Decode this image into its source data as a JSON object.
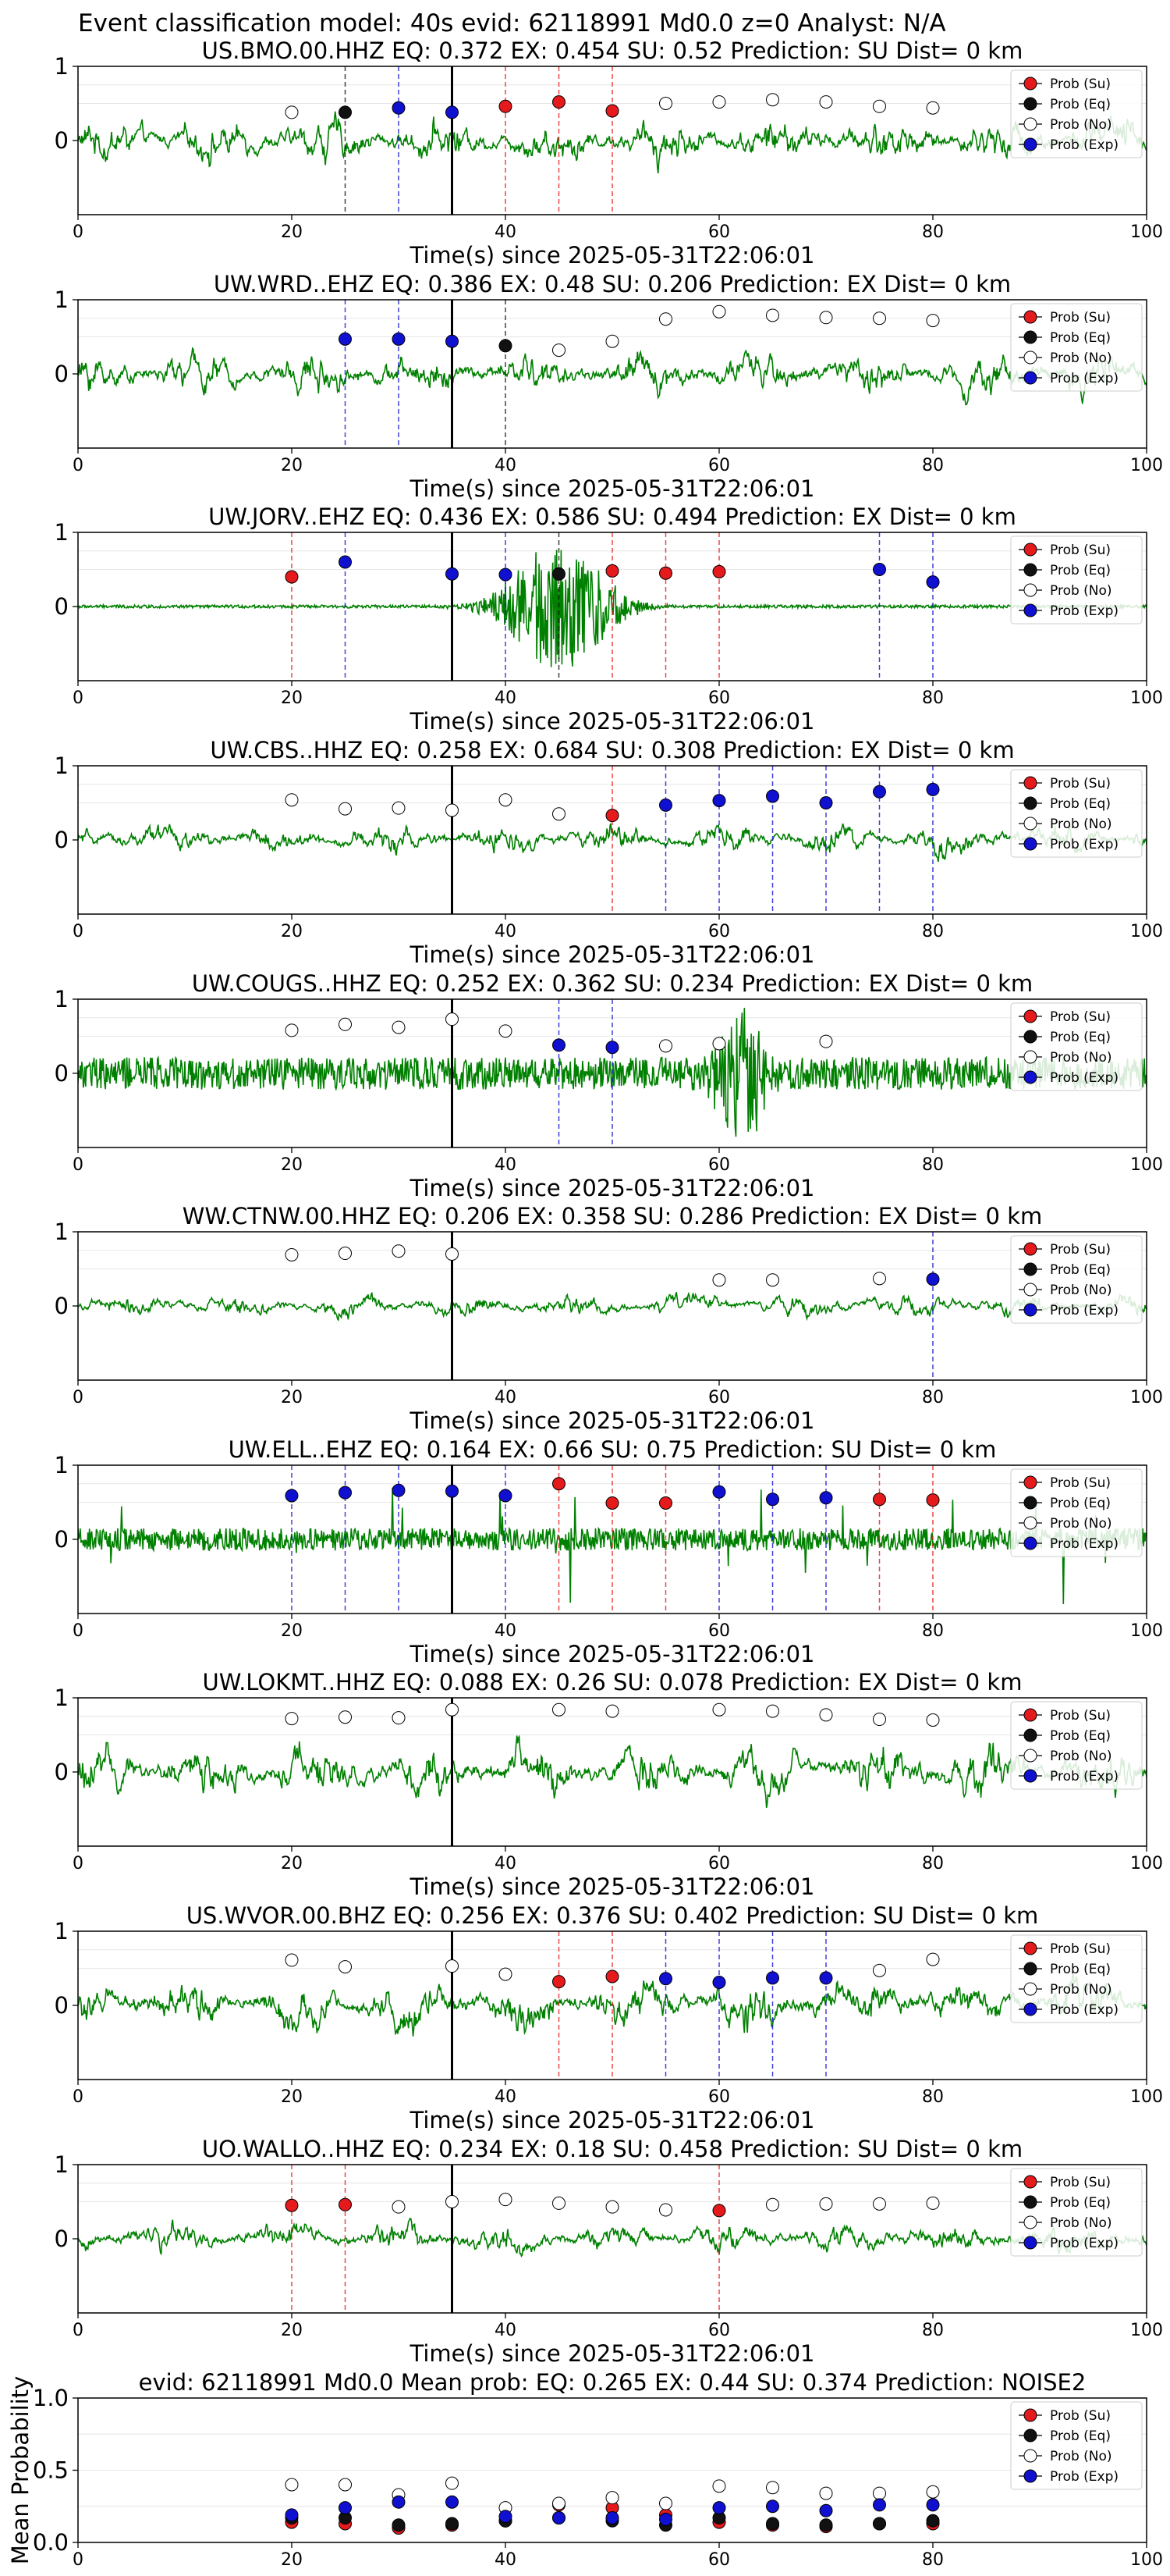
{
  "figure": {
    "suptitle": "Event classification model: 40s evid: 62118991 Md0.0 z=0 Analyst: N/A"
  },
  "legend": {
    "su": "Prob (Su)",
    "eq": "Prob (Eq)",
    "no": "Prob (No)",
    "exp": "Prob (Exp)"
  },
  "colors": {
    "su": "#e41a1c",
    "eq": "#111111",
    "no": "#ffffff",
    "exp": "#1010d0",
    "waveform": "#008000",
    "pick": "#000000"
  },
  "chart_data": [
    {
      "type": "line",
      "title": "US.BMO.00.HHZ   EQ: 0.372  EX: 0.454  SU: 0.52   Prediction: SU    Dist= 0 km",
      "xlabel": "Time(s) since 2025-05-31T22:06:01",
      "xlim": [
        0,
        100
      ],
      "ylim": [
        -1,
        1
      ],
      "xticks": [
        0,
        20,
        40,
        60,
        80,
        100
      ],
      "yticks": [
        0,
        1
      ],
      "legend_position": "top-right",
      "pick_time": 35,
      "probabilities": {
        "su": [
          {
            "x": 40,
            "y": 0.46
          },
          {
            "x": 45,
            "y": 0.52
          },
          {
            "x": 50,
            "y": 0.4
          }
        ],
        "eq": [
          {
            "x": 25,
            "y": 0.38
          }
        ],
        "no": [
          {
            "x": 20,
            "y": 0.38
          },
          {
            "x": 55,
            "y": 0.5
          },
          {
            "x": 60,
            "y": 0.52
          },
          {
            "x": 65,
            "y": 0.55
          },
          {
            "x": 70,
            "y": 0.52
          },
          {
            "x": 75,
            "y": 0.46
          },
          {
            "x": 80,
            "y": 0.44
          }
        ],
        "exp": [
          {
            "x": 30,
            "y": 0.44
          },
          {
            "x": 35,
            "y": 0.38
          }
        ]
      },
      "waveform": {
        "style": "broadband",
        "amplitude": 0.45
      }
    },
    {
      "type": "line",
      "title": "UW.WRD..EHZ   EQ: 0.386  EX: 0.48  SU: 0.206   Prediction: EX    Dist= 0 km",
      "xlabel": "Time(s) since 2025-05-31T22:06:01",
      "xlim": [
        0,
        100
      ],
      "ylim": [
        -1,
        1
      ],
      "xticks": [
        0,
        20,
        40,
        60,
        80,
        100
      ],
      "yticks": [
        0,
        1
      ],
      "legend_position": "top-right",
      "pick_time": 35,
      "probabilities": {
        "su": [],
        "eq": [
          {
            "x": 40,
            "y": 0.38
          }
        ],
        "no": [
          {
            "x": 45,
            "y": 0.32
          },
          {
            "x": 50,
            "y": 0.44
          },
          {
            "x": 55,
            "y": 0.74
          },
          {
            "x": 60,
            "y": 0.84
          },
          {
            "x": 65,
            "y": 0.79
          },
          {
            "x": 70,
            "y": 0.76
          },
          {
            "x": 75,
            "y": 0.75
          },
          {
            "x": 80,
            "y": 0.72
          }
        ],
        "exp": [
          {
            "x": 25,
            "y": 0.47
          },
          {
            "x": 30,
            "y": 0.47
          },
          {
            "x": 35,
            "y": 0.44
          }
        ]
      },
      "waveform": {
        "style": "broadband",
        "amplitude": 0.42
      }
    },
    {
      "type": "line",
      "title": "UW.JORV..EHZ   EQ: 0.436  EX: 0.586  SU: 0.494   Prediction: EX    Dist= 0 km",
      "xlabel": "Time(s) since 2025-05-31T22:06:01",
      "xlim": [
        0,
        100
      ],
      "ylim": [
        -1,
        1
      ],
      "xticks": [
        0,
        20,
        40,
        60,
        80,
        100
      ],
      "yticks": [
        0,
        1
      ],
      "legend_position": "top-right",
      "pick_time": 35,
      "probabilities": {
        "su": [
          {
            "x": 20,
            "y": 0.4
          },
          {
            "x": 50,
            "y": 0.48
          },
          {
            "x": 55,
            "y": 0.45
          },
          {
            "x": 60,
            "y": 0.47
          }
        ],
        "eq": [
          {
            "x": 45,
            "y": 0.44
          }
        ],
        "no": [],
        "exp": [
          {
            "x": 25,
            "y": 0.6
          },
          {
            "x": 35,
            "y": 0.44
          },
          {
            "x": 40,
            "y": 0.43
          },
          {
            "x": 75,
            "y": 0.5
          },
          {
            "x": 80,
            "y": 0.33
          }
        ]
      },
      "waveform": {
        "style": "burst",
        "amplitude": 0.02,
        "burst_center": 45,
        "burst_width": 5,
        "burst_amplitude": 0.9
      }
    },
    {
      "type": "line",
      "title": "UW.CBS..HHZ   EQ: 0.258  EX: 0.684  SU: 0.308   Prediction: EX    Dist= 0 km",
      "xlabel": "Time(s) since 2025-05-31T22:06:01",
      "xlim": [
        0,
        100
      ],
      "ylim": [
        -1,
        1
      ],
      "xticks": [
        0,
        20,
        40,
        60,
        80,
        100
      ],
      "yticks": [
        0,
        1
      ],
      "legend_position": "top-right",
      "pick_time": 35,
      "probabilities": {
        "su": [
          {
            "x": 50,
            "y": 0.33
          }
        ],
        "eq": [],
        "no": [
          {
            "x": 20,
            "y": 0.54
          },
          {
            "x": 25,
            "y": 0.42
          },
          {
            "x": 30,
            "y": 0.43
          },
          {
            "x": 35,
            "y": 0.4
          },
          {
            "x": 40,
            "y": 0.54
          },
          {
            "x": 45,
            "y": 0.35
          }
        ],
        "exp": [
          {
            "x": 55,
            "y": 0.47
          },
          {
            "x": 60,
            "y": 0.53
          },
          {
            "x": 65,
            "y": 0.59
          },
          {
            "x": 70,
            "y": 0.5
          },
          {
            "x": 75,
            "y": 0.65
          },
          {
            "x": 80,
            "y": 0.68
          }
        ]
      },
      "waveform": {
        "style": "broadband",
        "amplitude": 0.3
      }
    },
    {
      "type": "line",
      "title": "UW.COUGS..HHZ   EQ: 0.252  EX: 0.362  SU: 0.234   Prediction: EX    Dist= 0 km",
      "xlabel": "Time(s) since 2025-05-31T22:06:01",
      "xlim": [
        0,
        100
      ],
      "ylim": [
        -1,
        1
      ],
      "xticks": [
        0,
        20,
        40,
        60,
        80,
        100
      ],
      "yticks": [
        0,
        1
      ],
      "legend_position": "top-right",
      "pick_time": 35,
      "probabilities": {
        "su": [],
        "eq": [],
        "no": [
          {
            "x": 20,
            "y": 0.58
          },
          {
            "x": 25,
            "y": 0.66
          },
          {
            "x": 30,
            "y": 0.62
          },
          {
            "x": 35,
            "y": 0.73
          },
          {
            "x": 40,
            "y": 0.57
          },
          {
            "x": 55,
            "y": 0.37
          },
          {
            "x": 60,
            "y": 0.4
          },
          {
            "x": 70,
            "y": 0.43
          }
        ],
        "exp": [
          {
            "x": 45,
            "y": 0.38
          },
          {
            "x": 50,
            "y": 0.35
          }
        ]
      },
      "waveform": {
        "style": "burst",
        "amplitude": 0.22,
        "burst_center": 62,
        "burst_width": 2.5,
        "burst_amplitude": 0.9
      }
    },
    {
      "type": "line",
      "title": "WW.CTNW.00.HHZ   EQ: 0.206  EX: 0.358  SU: 0.286   Prediction: EX    Dist= 0 km",
      "xlabel": "Time(s) since 2025-05-31T22:06:01",
      "xlim": [
        0,
        100
      ],
      "ylim": [
        -1,
        1
      ],
      "xticks": [
        0,
        20,
        40,
        60,
        80,
        100
      ],
      "yticks": [
        0,
        1
      ],
      "legend_position": "top-right",
      "pick_time": 35,
      "probabilities": {
        "su": [],
        "eq": [],
        "no": [
          {
            "x": 20,
            "y": 0.69
          },
          {
            "x": 25,
            "y": 0.71
          },
          {
            "x": 30,
            "y": 0.74
          },
          {
            "x": 35,
            "y": 0.7
          },
          {
            "x": 60,
            "y": 0.35
          },
          {
            "x": 65,
            "y": 0.35
          },
          {
            "x": 75,
            "y": 0.37
          }
        ],
        "exp": [
          {
            "x": 80,
            "y": 0.36
          }
        ]
      },
      "waveform": {
        "style": "broadband",
        "amplitude": 0.22
      }
    },
    {
      "type": "line",
      "title": "UW.ELL..EHZ   EQ: 0.164  EX: 0.66  SU: 0.75   Prediction: SU    Dist= 0 km",
      "xlabel": "Time(s) since 2025-05-31T22:06:01",
      "xlim": [
        0,
        100
      ],
      "ylim": [
        -1,
        1
      ],
      "xticks": [
        0,
        20,
        40,
        60,
        80,
        100
      ],
      "yticks": [
        0,
        1
      ],
      "legend_position": "top-right",
      "pick_time": 35,
      "probabilities": {
        "su": [
          {
            "x": 45,
            "y": 0.75
          },
          {
            "x": 50,
            "y": 0.49
          },
          {
            "x": 55,
            "y": 0.49
          },
          {
            "x": 75,
            "y": 0.54
          },
          {
            "x": 80,
            "y": 0.53
          }
        ],
        "eq": [],
        "no": [],
        "exp": [
          {
            "x": 20,
            "y": 0.59
          },
          {
            "x": 25,
            "y": 0.63
          },
          {
            "x": 30,
            "y": 0.66
          },
          {
            "x": 35,
            "y": 0.65
          },
          {
            "x": 40,
            "y": 0.59
          },
          {
            "x": 60,
            "y": 0.64
          },
          {
            "x": 65,
            "y": 0.54
          },
          {
            "x": 70,
            "y": 0.56
          }
        ]
      },
      "waveform": {
        "style": "spiky",
        "amplitude": 0.15
      }
    },
    {
      "type": "line",
      "title": "UW.LOKMT..HHZ   EQ: 0.088  EX: 0.26  SU: 0.078   Prediction: EX    Dist= 0 km",
      "xlabel": "Time(s) since 2025-05-31T22:06:01",
      "xlim": [
        0,
        100
      ],
      "ylim": [
        -1,
        1
      ],
      "xticks": [
        0,
        20,
        40,
        60,
        80,
        100
      ],
      "yticks": [
        0,
        1
      ],
      "legend_position": "top-right",
      "pick_time": 35,
      "probabilities": {
        "su": [],
        "eq": [],
        "no": [
          {
            "x": 20,
            "y": 0.72
          },
          {
            "x": 25,
            "y": 0.74
          },
          {
            "x": 30,
            "y": 0.73
          },
          {
            "x": 35,
            "y": 0.84
          },
          {
            "x": 45,
            "y": 0.84
          },
          {
            "x": 50,
            "y": 0.82
          },
          {
            "x": 60,
            "y": 0.84
          },
          {
            "x": 65,
            "y": 0.82
          },
          {
            "x": 70,
            "y": 0.77
          },
          {
            "x": 75,
            "y": 0.71
          },
          {
            "x": 80,
            "y": 0.7
          }
        ],
        "exp": []
      },
      "waveform": {
        "style": "broadband",
        "amplitude": 0.55
      }
    },
    {
      "type": "line",
      "title": "US.WVOR.00.BHZ   EQ: 0.256  EX: 0.376  SU: 0.402   Prediction: SU    Dist= 0 km",
      "xlabel": "Time(s) since 2025-05-31T22:06:01",
      "xlim": [
        0,
        100
      ],
      "ylim": [
        -1,
        1
      ],
      "xticks": [
        0,
        20,
        40,
        60,
        80,
        100
      ],
      "yticks": [
        0,
        1
      ],
      "legend_position": "top-right",
      "pick_time": 35,
      "probabilities": {
        "su": [
          {
            "x": 45,
            "y": 0.32
          },
          {
            "x": 50,
            "y": 0.39
          }
        ],
        "eq": [],
        "no": [
          {
            "x": 20,
            "y": 0.61
          },
          {
            "x": 25,
            "y": 0.52
          },
          {
            "x": 35,
            "y": 0.53
          },
          {
            "x": 40,
            "y": 0.42
          },
          {
            "x": 75,
            "y": 0.47
          },
          {
            "x": 80,
            "y": 0.62
          }
        ],
        "exp": [
          {
            "x": 55,
            "y": 0.36
          },
          {
            "x": 60,
            "y": 0.31
          },
          {
            "x": 65,
            "y": 0.37
          },
          {
            "x": 70,
            "y": 0.37
          }
        ]
      },
      "waveform": {
        "style": "broadband",
        "amplitude": 0.5
      }
    },
    {
      "type": "line",
      "title": "UO.WALLO..HHZ   EQ: 0.234  EX: 0.18  SU: 0.458   Prediction: SU    Dist= 0 km",
      "xlabel": "Time(s) since 2025-05-31T22:06:01",
      "xlim": [
        0,
        100
      ],
      "ylim": [
        -1,
        1
      ],
      "xticks": [
        0,
        20,
        40,
        60,
        80,
        100
      ],
      "yticks": [
        0,
        1
      ],
      "legend_position": "top-right",
      "pick_time": 35,
      "probabilities": {
        "su": [
          {
            "x": 20,
            "y": 0.45
          },
          {
            "x": 25,
            "y": 0.46
          },
          {
            "x": 60,
            "y": 0.38
          }
        ],
        "eq": [],
        "no": [
          {
            "x": 30,
            "y": 0.43
          },
          {
            "x": 35,
            "y": 0.5
          },
          {
            "x": 40,
            "y": 0.53
          },
          {
            "x": 45,
            "y": 0.48
          },
          {
            "x": 50,
            "y": 0.43
          },
          {
            "x": 55,
            "y": 0.39
          },
          {
            "x": 65,
            "y": 0.46
          },
          {
            "x": 70,
            "y": 0.47
          },
          {
            "x": 75,
            "y": 0.47
          },
          {
            "x": 80,
            "y": 0.48
          }
        ],
        "exp": []
      },
      "waveform": {
        "style": "broadband",
        "amplitude": 0.3
      }
    },
    {
      "type": "scatter",
      "title": "evid: 62118991  Md0.0   Mean prob:   EQ: 0.265  EX: 0.44  SU: 0.374   Prediction: NOISE2",
      "xlabel": "",
      "ylabel": "Mean Probability",
      "xlim": [
        0,
        100
      ],
      "ylim": [
        0,
        1
      ],
      "xticks": [
        0,
        20,
        40,
        60,
        80,
        100
      ],
      "yticks": [
        0.0,
        0.5,
        1.0
      ],
      "grid": true,
      "legend_position": "top-right",
      "probabilities": {
        "su": [
          {
            "x": 20,
            "y": 0.14
          },
          {
            "x": 25,
            "y": 0.13
          },
          {
            "x": 30,
            "y": 0.1
          },
          {
            "x": 35,
            "y": 0.12
          },
          {
            "x": 40,
            "y": 0.15
          },
          {
            "x": 45,
            "y": 0.26
          },
          {
            "x": 50,
            "y": 0.24
          },
          {
            "x": 55,
            "y": 0.19
          },
          {
            "x": 60,
            "y": 0.14
          },
          {
            "x": 65,
            "y": 0.12
          },
          {
            "x": 70,
            "y": 0.11
          },
          {
            "x": 75,
            "y": 0.13
          },
          {
            "x": 80,
            "y": 0.13
          }
        ],
        "eq": [
          {
            "x": 20,
            "y": 0.17
          },
          {
            "x": 25,
            "y": 0.17
          },
          {
            "x": 30,
            "y": 0.12
          },
          {
            "x": 35,
            "y": 0.13
          },
          {
            "x": 40,
            "y": 0.15
          },
          {
            "x": 45,
            "y": 0.17
          },
          {
            "x": 50,
            "y": 0.15
          },
          {
            "x": 55,
            "y": 0.12
          },
          {
            "x": 60,
            "y": 0.17
          },
          {
            "x": 65,
            "y": 0.13
          },
          {
            "x": 70,
            "y": 0.12
          },
          {
            "x": 75,
            "y": 0.13
          },
          {
            "x": 80,
            "y": 0.15
          }
        ],
        "no": [
          {
            "x": 20,
            "y": 0.4
          },
          {
            "x": 25,
            "y": 0.4
          },
          {
            "x": 30,
            "y": 0.33
          },
          {
            "x": 35,
            "y": 0.41
          },
          {
            "x": 40,
            "y": 0.24
          },
          {
            "x": 45,
            "y": 0.27
          },
          {
            "x": 50,
            "y": 0.31
          },
          {
            "x": 55,
            "y": 0.27
          },
          {
            "x": 60,
            "y": 0.39
          },
          {
            "x": 65,
            "y": 0.38
          },
          {
            "x": 70,
            "y": 0.34
          },
          {
            "x": 75,
            "y": 0.34
          },
          {
            "x": 80,
            "y": 0.35
          }
        ],
        "exp": [
          {
            "x": 20,
            "y": 0.19
          },
          {
            "x": 25,
            "y": 0.24
          },
          {
            "x": 30,
            "y": 0.28
          },
          {
            "x": 35,
            "y": 0.28
          },
          {
            "x": 40,
            "y": 0.18
          },
          {
            "x": 45,
            "y": 0.17
          },
          {
            "x": 50,
            "y": 0.17
          },
          {
            "x": 55,
            "y": 0.16
          },
          {
            "x": 60,
            "y": 0.24
          },
          {
            "x": 65,
            "y": 0.25
          },
          {
            "x": 70,
            "y": 0.22
          },
          {
            "x": 75,
            "y": 0.26
          },
          {
            "x": 80,
            "y": 0.26
          }
        ]
      }
    }
  ]
}
